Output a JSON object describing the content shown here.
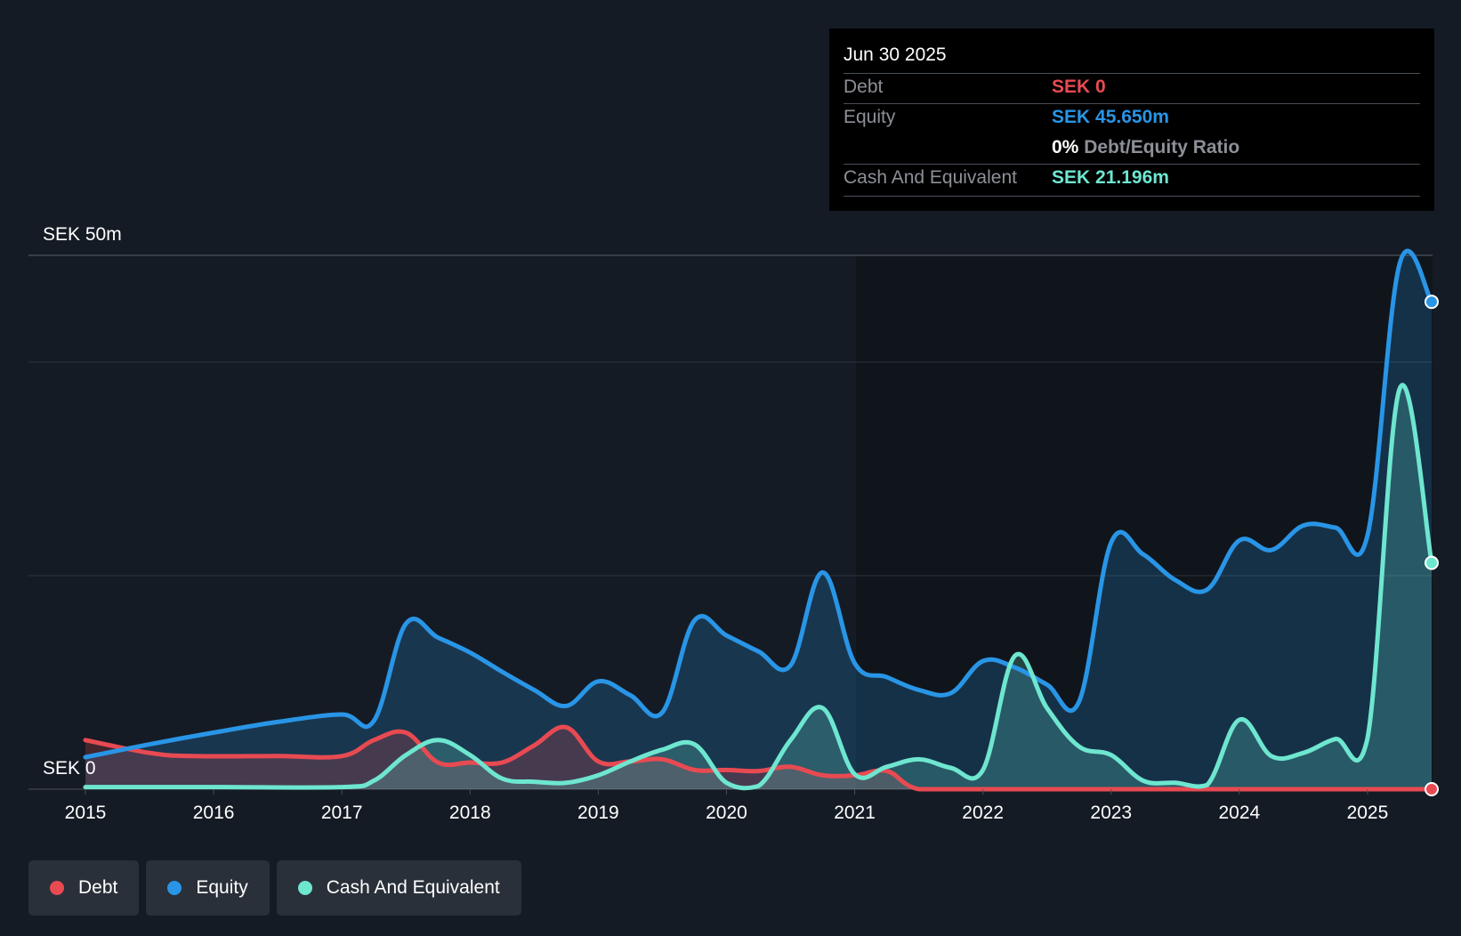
{
  "colors": {
    "debt": "#e84a52",
    "equity": "#2995e6",
    "cash": "#6ee6d0",
    "background": "#151b24",
    "plot_background": "#0f141b"
  },
  "tooltip": {
    "date": "Jun 30 2025",
    "debt_label": "Debt",
    "debt_value": "SEK 0",
    "equity_label": "Equity",
    "equity_value": "SEK 45.650m",
    "ratio_pct": "0%",
    "ratio_label": "Debt/Equity Ratio",
    "cash_label": "Cash And Equivalent",
    "cash_value": "SEK 21.196m"
  },
  "legend": [
    {
      "key": "debt",
      "label": "Debt"
    },
    {
      "key": "equity",
      "label": "Equity"
    },
    {
      "key": "cash",
      "label": "Cash And Equivalent"
    }
  ],
  "chart_data": {
    "type": "area",
    "title": "",
    "xlabel": "",
    "ylabel": "",
    "y_top_label": "SEK 50m",
    "y_bottom_label": "SEK 0",
    "ylim": [
      0,
      50
    ],
    "xlim": [
      2015.0,
      2025.5
    ],
    "gridlines": [
      50,
      40,
      20,
      0
    ],
    "x_ticks": [
      2015,
      2016,
      2017,
      2018,
      2019,
      2020,
      2021,
      2022,
      2023,
      2024,
      2025
    ],
    "x_tick_labels": [
      "2015",
      "2016",
      "2017",
      "2018",
      "2019",
      "2020",
      "2021",
      "2022",
      "2023",
      "2024",
      "2025"
    ],
    "series": [
      {
        "name": "Debt",
        "key": "debt",
        "points": [
          [
            2015.0,
            4.6
          ],
          [
            2015.5,
            3.4
          ],
          [
            2015.83,
            3.1
          ],
          [
            2016.5,
            3.1
          ],
          [
            2017.0,
            3.1
          ],
          [
            2017.25,
            4.6
          ],
          [
            2017.5,
            5.3
          ],
          [
            2017.75,
            2.5
          ],
          [
            2018.0,
            2.5
          ],
          [
            2018.25,
            2.5
          ],
          [
            2018.5,
            4.1
          ],
          [
            2018.75,
            5.8
          ],
          [
            2019.0,
            2.6
          ],
          [
            2019.25,
            2.6
          ],
          [
            2019.5,
            2.8
          ],
          [
            2019.75,
            1.8
          ],
          [
            2020.0,
            1.8
          ],
          [
            2020.25,
            1.7
          ],
          [
            2020.5,
            2.1
          ],
          [
            2020.75,
            1.3
          ],
          [
            2021.0,
            1.3
          ],
          [
            2021.25,
            1.7
          ],
          [
            2021.5,
            0.0
          ],
          [
            2022.0,
            0.0
          ],
          [
            2023.0,
            0.0
          ],
          [
            2024.0,
            0.0
          ],
          [
            2025.0,
            0.0
          ],
          [
            2025.5,
            0.0
          ]
        ]
      },
      {
        "name": "Equity",
        "key": "equity",
        "points": [
          [
            2015.0,
            3.0
          ],
          [
            2015.5,
            4.2
          ],
          [
            2016.0,
            5.3
          ],
          [
            2016.5,
            6.3
          ],
          [
            2017.0,
            7.0
          ],
          [
            2017.25,
            6.4
          ],
          [
            2017.5,
            15.5
          ],
          [
            2017.75,
            14.2
          ],
          [
            2018.0,
            12.8
          ],
          [
            2018.25,
            11.0
          ],
          [
            2018.5,
            9.3
          ],
          [
            2018.75,
            7.8
          ],
          [
            2019.0,
            10.1
          ],
          [
            2019.25,
            8.8
          ],
          [
            2019.5,
            7.2
          ],
          [
            2019.75,
            15.8
          ],
          [
            2020.0,
            14.4
          ],
          [
            2020.25,
            12.9
          ],
          [
            2020.5,
            11.6
          ],
          [
            2020.75,
            20.3
          ],
          [
            2021.0,
            11.8
          ],
          [
            2021.25,
            10.5
          ],
          [
            2021.5,
            9.3
          ],
          [
            2021.75,
            9.0
          ],
          [
            2022.0,
            12.0
          ],
          [
            2022.25,
            11.4
          ],
          [
            2022.5,
            9.8
          ],
          [
            2022.75,
            8.2
          ],
          [
            2023.0,
            23.1
          ],
          [
            2023.25,
            22.0
          ],
          [
            2023.5,
            19.6
          ],
          [
            2023.75,
            18.7
          ],
          [
            2024.0,
            23.3
          ],
          [
            2024.25,
            22.4
          ],
          [
            2024.5,
            24.7
          ],
          [
            2024.75,
            24.5
          ],
          [
            2025.0,
            23.8
          ],
          [
            2025.25,
            49.2
          ],
          [
            2025.5,
            45.65
          ]
        ]
      },
      {
        "name": "Cash And Equivalent",
        "key": "cash",
        "points": [
          [
            2015.0,
            0.2
          ],
          [
            2016.0,
            0.2
          ],
          [
            2017.0,
            0.2
          ],
          [
            2017.25,
            0.8
          ],
          [
            2017.5,
            3.2
          ],
          [
            2017.75,
            4.6
          ],
          [
            2018.0,
            3.2
          ],
          [
            2018.25,
            1.0
          ],
          [
            2018.5,
            0.7
          ],
          [
            2018.75,
            0.6
          ],
          [
            2019.0,
            1.3
          ],
          [
            2019.25,
            2.6
          ],
          [
            2019.5,
            3.7
          ],
          [
            2019.75,
            4.2
          ],
          [
            2020.0,
            0.6
          ],
          [
            2020.25,
            0.3
          ],
          [
            2020.5,
            4.6
          ],
          [
            2020.75,
            7.6
          ],
          [
            2021.0,
            1.4
          ],
          [
            2021.25,
            2.1
          ],
          [
            2021.5,
            2.8
          ],
          [
            2021.75,
            2.0
          ],
          [
            2022.0,
            1.8
          ],
          [
            2022.25,
            12.5
          ],
          [
            2022.5,
            7.6
          ],
          [
            2022.75,
            4.0
          ],
          [
            2023.0,
            3.2
          ],
          [
            2023.25,
            0.8
          ],
          [
            2023.5,
            0.6
          ],
          [
            2023.75,
            0.4
          ],
          [
            2024.0,
            6.5
          ],
          [
            2024.25,
            3.1
          ],
          [
            2024.5,
            3.4
          ],
          [
            2024.75,
            4.7
          ],
          [
            2025.0,
            4.8
          ],
          [
            2025.25,
            37.5
          ],
          [
            2025.5,
            21.196
          ]
        ]
      }
    ]
  }
}
